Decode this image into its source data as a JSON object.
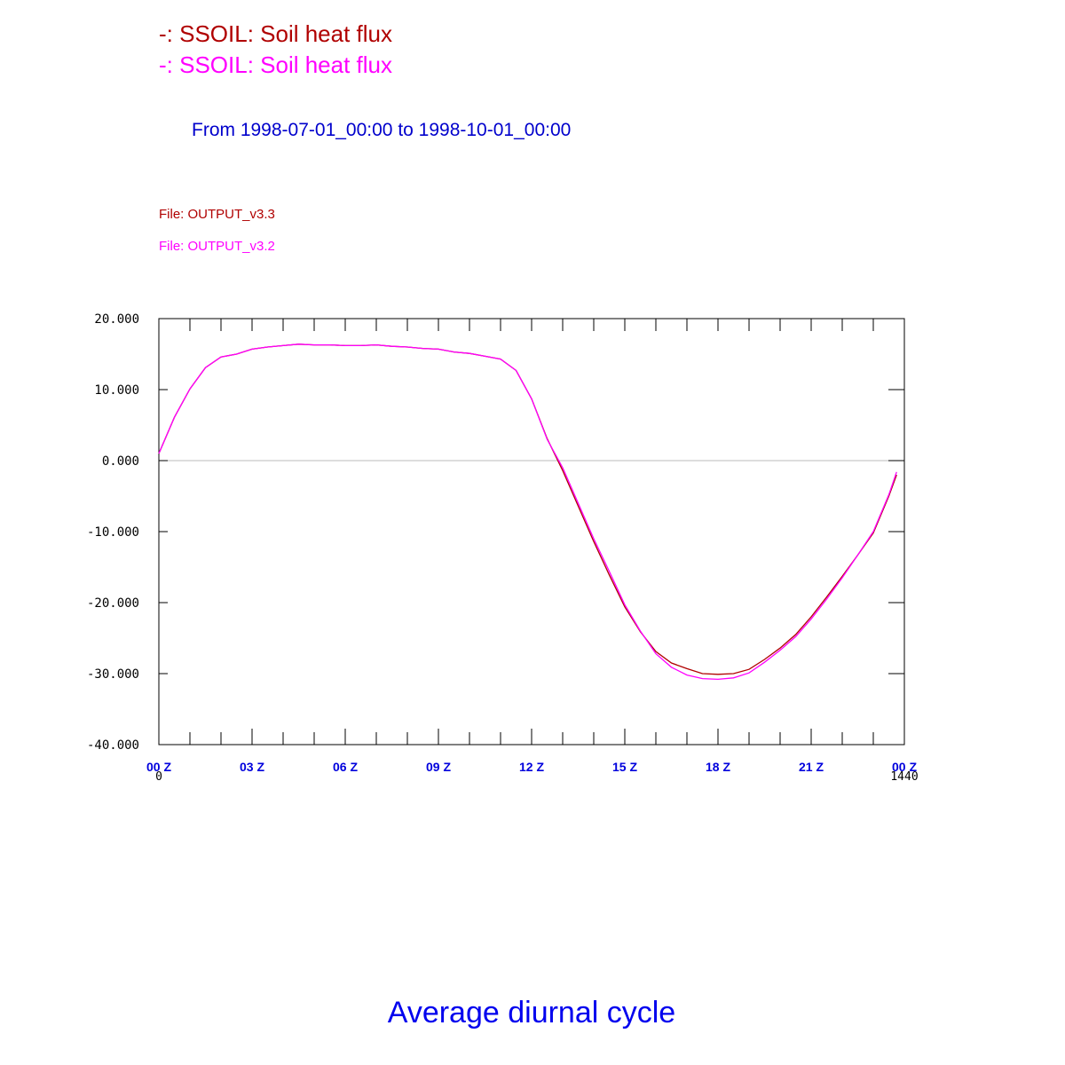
{
  "chart_data": {
    "type": "line",
    "title": "Average diurnal cycle",
    "subtitle": "From 1998-07-01_00:00 to 1998-10-01_00:00",
    "x": [
      0,
      30,
      60,
      90,
      120,
      150,
      180,
      210,
      240,
      270,
      300,
      330,
      360,
      390,
      420,
      450,
      480,
      510,
      540,
      570,
      600,
      630,
      660,
      690,
      720,
      750,
      780,
      810,
      840,
      870,
      900,
      930,
      960,
      990,
      1020,
      1050,
      1080,
      1110,
      1140,
      1170,
      1200,
      1230,
      1260,
      1290,
      1320,
      1350,
      1380,
      1410,
      1425
    ],
    "series": [
      {
        "name": "-: SSOIL: Soil heat flux",
        "file": "File: OUTPUT_v3.3",
        "color": "#b00000",
        "values": [
          1.0,
          6.1,
          10.1,
          13.1,
          14.6,
          15.0,
          15.7,
          16.0,
          16.2,
          16.4,
          16.3,
          16.3,
          16.2,
          16.2,
          16.3,
          16.1,
          16.0,
          15.8,
          15.7,
          15.3,
          15.1,
          14.7,
          14.3,
          12.7,
          8.7,
          3.1,
          -1.4,
          -6.4,
          -11.4,
          -16.1,
          -20.6,
          -24.1,
          -26.9,
          -28.5,
          -29.3,
          -30.0,
          -30.1,
          -30.0,
          -29.4,
          -28.0,
          -26.4,
          -24.5,
          -22.0,
          -19.2,
          -16.3,
          -13.3,
          -10.2,
          -5.0,
          -2.0
        ]
      },
      {
        "name": "-: SSOIL: Soil heat flux",
        "file": "File: OUTPUT_v3.2",
        "color": "#ff00ff",
        "values": [
          1.0,
          6.1,
          10.1,
          13.1,
          14.6,
          15.0,
          15.7,
          16.0,
          16.2,
          16.4,
          16.3,
          16.3,
          16.2,
          16.2,
          16.3,
          16.1,
          16.0,
          15.8,
          15.7,
          15.3,
          15.1,
          14.7,
          14.3,
          12.7,
          8.7,
          3.0,
          -1.0,
          -6.0,
          -11.0,
          -15.6,
          -20.3,
          -24.0,
          -27.2,
          -29.1,
          -30.2,
          -30.7,
          -30.8,
          -30.6,
          -29.9,
          -28.4,
          -26.7,
          -24.8,
          -22.3,
          -19.5,
          -16.5,
          -13.3,
          -10.0,
          -4.8,
          -1.6
        ]
      }
    ],
    "xlim": [
      0,
      1440
    ],
    "xticks": [
      {
        "value": 0,
        "label": "00 Z"
      },
      {
        "value": 180,
        "label": "03 Z"
      },
      {
        "value": 360,
        "label": "06 Z"
      },
      {
        "value": 540,
        "label": "09 Z"
      },
      {
        "value": 720,
        "label": "12 Z"
      },
      {
        "value": 900,
        "label": "15 Z"
      },
      {
        "value": 1080,
        "label": "18 Z"
      },
      {
        "value": 1260,
        "label": "21 Z"
      },
      {
        "value": 1440,
        "label": "00 Z"
      }
    ],
    "xminorticks": [
      0,
      60,
      120,
      180,
      240,
      300,
      360,
      420,
      480,
      540,
      600,
      660,
      720,
      780,
      840,
      900,
      960,
      1020,
      1080,
      1140,
      1200,
      1260,
      1320,
      1380,
      1440
    ],
    "ylim": [
      -40,
      20
    ],
    "yticks": [
      {
        "value": -40,
        "label": "-40.000"
      },
      {
        "value": -30,
        "label": "-30.000"
      },
      {
        "value": -20,
        "label": "-20.000"
      },
      {
        "value": -10,
        "label": "-10.000"
      },
      {
        "value": 0,
        "label": "0.000"
      },
      {
        "value": 10,
        "label": "10.000"
      },
      {
        "value": 20,
        "label": "20.000"
      }
    ],
    "zero_line": true
  }
}
